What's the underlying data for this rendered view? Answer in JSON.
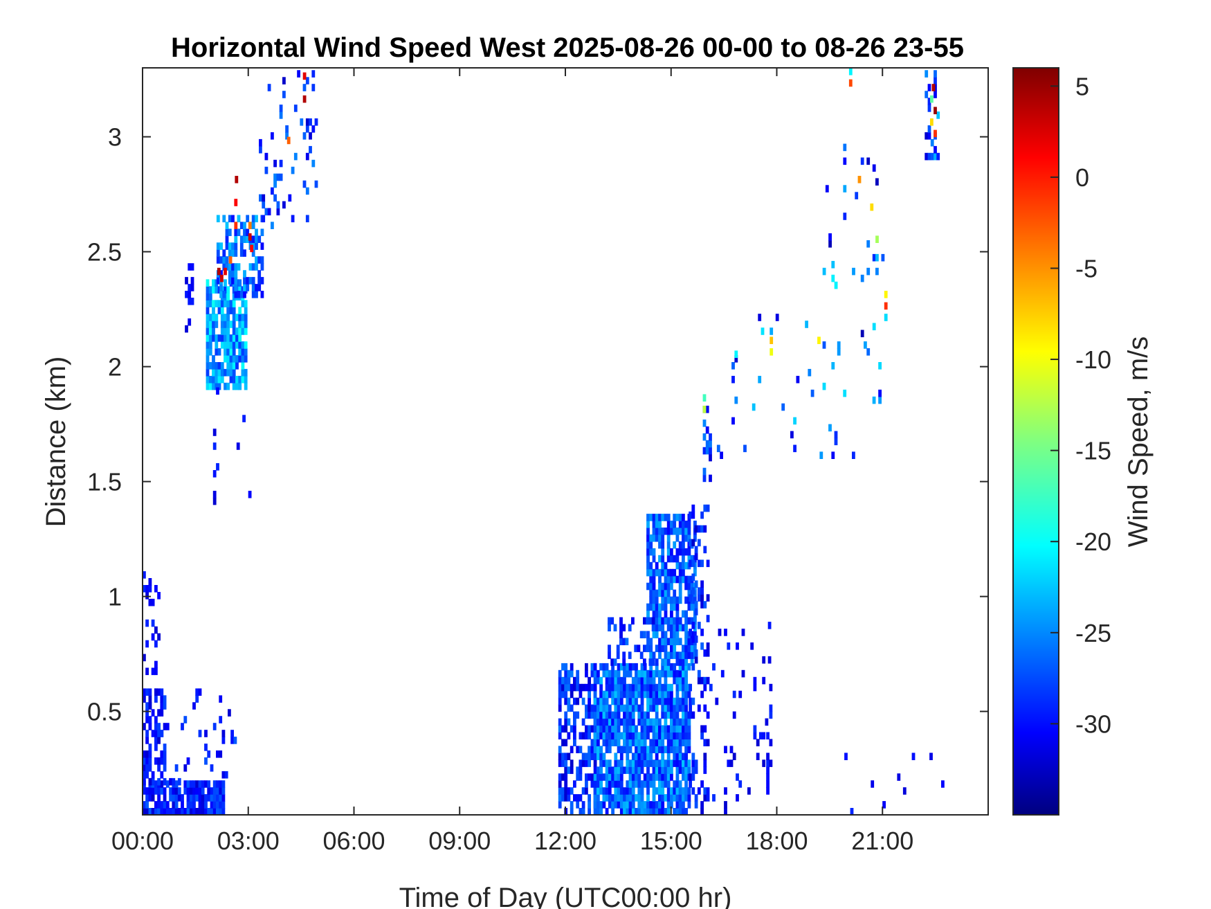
{
  "chart_data": {
    "type": "heatmap",
    "title": "Horizontal Wind Speed West 2025-08-26 00-00 to 08-26 23-55",
    "xlabel": "Time of Day (UTC00:00 hr)",
    "ylabel": "Distance (km)",
    "colorbar_label": "Wind Speed, m/s",
    "x_unit": "hours",
    "xlim": [
      0,
      24
    ],
    "ylim": [
      0.05,
      3.3
    ],
    "clim": [
      -35,
      6
    ],
    "colormap": "jet",
    "x_ticks": [
      {
        "value": 0,
        "label": "00:00"
      },
      {
        "value": 3,
        "label": "03:00"
      },
      {
        "value": 6,
        "label": "06:00"
      },
      {
        "value": 9,
        "label": "09:00"
      },
      {
        "value": 12,
        "label": "12:00"
      },
      {
        "value": 15,
        "label": "15:00"
      },
      {
        "value": 18,
        "label": "18:00"
      },
      {
        "value": 21,
        "label": "21:00"
      }
    ],
    "y_ticks": [
      {
        "value": 0.5,
        "label": "0.5"
      },
      {
        "value": 1,
        "label": "1"
      },
      {
        "value": 1.5,
        "label": "1.5"
      },
      {
        "value": 2,
        "label": "2"
      },
      {
        "value": 2.5,
        "label": "2.5"
      },
      {
        "value": 3,
        "label": "3"
      }
    ],
    "colorbar_ticks": [
      {
        "value": 5,
        "label": "5"
      },
      {
        "value": 0,
        "label": "0"
      },
      {
        "value": -5,
        "label": "-5"
      },
      {
        "value": -10,
        "label": "-10"
      },
      {
        "value": -15,
        "label": "-15"
      },
      {
        "value": -20,
        "label": "-20"
      },
      {
        "value": -25,
        "label": "-25"
      },
      {
        "value": -30,
        "label": "-30"
      }
    ],
    "cell_size": {
      "dt_hours": 0.0833,
      "dr_km": 0.03
    },
    "regions": [
      {
        "t": [
          0,
          2.3
        ],
        "r": [
          0.05,
          0.18
        ],
        "density": 0.8,
        "v": [
          -32,
          -26
        ]
      },
      {
        "t": [
          0,
          0.6
        ],
        "r": [
          0.18,
          0.6
        ],
        "density": 0.45,
        "v": [
          -32,
          -27
        ]
      },
      {
        "t": [
          0,
          2.6
        ],
        "r": [
          0.18,
          0.6
        ],
        "density": 0.12,
        "v": [
          -32,
          -26
        ]
      },
      {
        "t": [
          0,
          0.5
        ],
        "r": [
          0.6,
          1.1
        ],
        "density": 0.1,
        "v": [
          -32,
          -28
        ]
      },
      {
        "t": [
          1.8,
          2.9
        ],
        "r": [
          1.9,
          2.35
        ],
        "density": 0.75,
        "v": [
          -28,
          -19
        ]
      },
      {
        "t": [
          2.1,
          3.4
        ],
        "r": [
          2.3,
          2.65
        ],
        "density": 0.5,
        "v": [
          -30,
          -22
        ]
      },
      {
        "t": [
          2.0,
          3.2
        ],
        "r": [
          1.4,
          1.9
        ],
        "density": 0.05,
        "v": [
          -32,
          -28
        ]
      },
      {
        "t": [
          1.2,
          1.4
        ],
        "r": [
          2.15,
          2.42
        ],
        "density": 0.45,
        "v": [
          -32,
          -28
        ]
      },
      {
        "t": [
          3.3,
          4.9
        ],
        "r": [
          2.6,
          3.3
        ],
        "density": 0.1,
        "v": [
          -32,
          -24
        ]
      },
      {
        "t": [
          11.8,
          12.8
        ],
        "r": [
          0.05,
          0.7
        ],
        "density": 0.55,
        "v": [
          -32,
          -25
        ]
      },
      {
        "t": [
          12.8,
          15.5
        ],
        "r": [
          0.05,
          0.7
        ],
        "density": 0.85,
        "v": [
          -30,
          -22
        ]
      },
      {
        "t": [
          14.3,
          15.7
        ],
        "r": [
          0.7,
          1.35
        ],
        "density": 0.7,
        "v": [
          -30,
          -23
        ]
      },
      {
        "t": [
          13.2,
          14.6
        ],
        "r": [
          0.7,
          0.9
        ],
        "density": 0.3,
        "v": [
          -31,
          -25
        ]
      },
      {
        "t": [
          15.5,
          16.0
        ],
        "r": [
          0.05,
          1.5
        ],
        "density": 0.25,
        "v": [
          -32,
          -26
        ]
      },
      {
        "t": [
          15.9,
          16.1
        ],
        "r": [
          1.5,
          1.9
        ],
        "density": 0.45,
        "v": [
          -32,
          -24
        ]
      },
      {
        "t": [
          16.0,
          17.8
        ],
        "r": [
          0.05,
          0.9
        ],
        "density": 0.06,
        "v": [
          -32,
          -28
        ]
      },
      {
        "t": [
          16.3,
          21.0
        ],
        "r": [
          1.6,
          2.2
        ],
        "density": 0.03,
        "v": [
          -32,
          -20
        ]
      },
      {
        "t": [
          19.3,
          21.1
        ],
        "r": [
          2.1,
          2.95
        ],
        "density": 0.05,
        "v": [
          -33,
          -20
        ]
      },
      {
        "t": [
          22.2,
          22.6
        ],
        "r": [
          2.9,
          3.27
        ],
        "density": 0.4,
        "v": [
          -32,
          -22
        ]
      },
      {
        "t": [
          17.7,
          17.85
        ],
        "r": [
          0.05,
          0.6
        ],
        "density": 0.3,
        "v": [
          -32,
          -28
        ]
      },
      {
        "t": [
          19.5,
          23.0
        ],
        "r": [
          0.05,
          0.3
        ],
        "density": 0.03,
        "v": [
          -32,
          -28
        ]
      }
    ],
    "highlights": [
      {
        "t": 2.12,
        "r": 2.4,
        "v": 4
      },
      {
        "t": 2.2,
        "r": 2.37,
        "v": 3
      },
      {
        "t": 2.3,
        "r": 2.4,
        "v": 2
      },
      {
        "t": 2.45,
        "r": 2.45,
        "v": -3
      },
      {
        "t": 2.6,
        "r": 2.6,
        "v": -1
      },
      {
        "t": 2.6,
        "r": 2.7,
        "v": 1
      },
      {
        "t": 2.62,
        "r": 2.8,
        "v": 4
      },
      {
        "t": 3.0,
        "r": 2.55,
        "v": 3
      },
      {
        "t": 3.05,
        "r": 2.5,
        "v": 1
      },
      {
        "t": 3.0,
        "r": 2.6,
        "v": -4
      },
      {
        "t": 4.55,
        "r": 3.25,
        "v": 2
      },
      {
        "t": 4.55,
        "r": 3.15,
        "v": 4
      },
      {
        "t": 4.1,
        "r": 2.97,
        "v": -3
      },
      {
        "t": 4.9,
        "r": 3.28,
        "v": -12
      },
      {
        "t": 15.9,
        "r": 1.8,
        "v": -12
      },
      {
        "t": 15.9,
        "r": 1.85,
        "v": -17
      },
      {
        "t": 17.8,
        "r": 2.1,
        "v": -7
      },
      {
        "t": 17.8,
        "r": 2.05,
        "v": -10
      },
      {
        "t": 16.8,
        "r": 2.04,
        "v": -20
      },
      {
        "t": 19.15,
        "r": 2.1,
        "v": -9
      },
      {
        "t": 20.05,
        "r": 3.22,
        "v": -2
      },
      {
        "t": 20.05,
        "r": 3.27,
        "v": -20
      },
      {
        "t": 20.3,
        "r": 2.8,
        "v": -5
      },
      {
        "t": 20.65,
        "r": 2.68,
        "v": -8
      },
      {
        "t": 20.8,
        "r": 2.54,
        "v": -13
      },
      {
        "t": 21.05,
        "r": 2.25,
        "v": -1
      },
      {
        "t": 21.05,
        "r": 2.3,
        "v": -9
      },
      {
        "t": 21.05,
        "r": 2.2,
        "v": -21
      },
      {
        "t": 22.4,
        "r": 3.2,
        "v": 4
      },
      {
        "t": 22.45,
        "r": 3.1,
        "v": 5
      },
      {
        "t": 22.45,
        "r": 3.0,
        "v": -1
      },
      {
        "t": 22.35,
        "r": 3.05,
        "v": -8
      },
      {
        "t": 22.35,
        "r": 3.15,
        "v": -16
      }
    ]
  }
}
